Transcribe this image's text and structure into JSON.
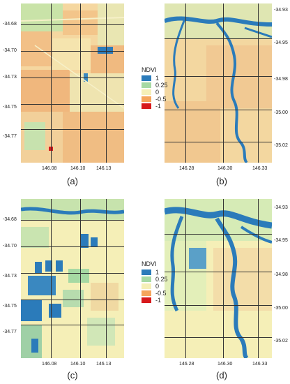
{
  "colors": {
    "ndvi_1": "#2b7bba",
    "ndvi_025": "#a6d9a3",
    "ndvi_0": "#f5efb7",
    "ndvi_m05": "#f5a55c",
    "ndvi_m1": "#d7191c",
    "background": "#f6eab9"
  },
  "legend": {
    "title": "NDVI",
    "items": [
      {
        "label": "1",
        "color": "#2b7bba"
      },
      {
        "label": "0.25",
        "color": "#a6d9a3"
      },
      {
        "label": "0",
        "color": "#f5efb7"
      },
      {
        "label": "-0.5",
        "color": "#f5a55c"
      },
      {
        "label": "-1",
        "color": "#d7191c"
      }
    ]
  },
  "panels": {
    "a": {
      "caption": "(a)",
      "lat_ticks": [
        "-34.68",
        "-34.70",
        "-34.73",
        "-34.75",
        "-34.77"
      ],
      "lon_ticks": [
        "146.08",
        "146.10",
        "146.13"
      ]
    },
    "b": {
      "caption": "(b)",
      "lat_ticks": [
        "-34.93",
        "-34.95",
        "-34.98",
        "-35.00",
        "-35.02"
      ],
      "lon_ticks": [
        "146.28",
        "146.30",
        "146.33"
      ]
    },
    "c": {
      "caption": "(c)",
      "lat_ticks": [
        "-34.68",
        "-34.70",
        "-34.73",
        "-34.75",
        "-34.77"
      ],
      "lon_ticks": [
        "146.08",
        "146.10",
        "146.13"
      ]
    },
    "d": {
      "caption": "(d)",
      "lat_ticks": [
        "-34.93",
        "-34.95",
        "-34.98",
        "-35.00",
        "-35.02"
      ],
      "lon_ticks": [
        "146.28",
        "146.30",
        "146.33"
      ]
    }
  }
}
